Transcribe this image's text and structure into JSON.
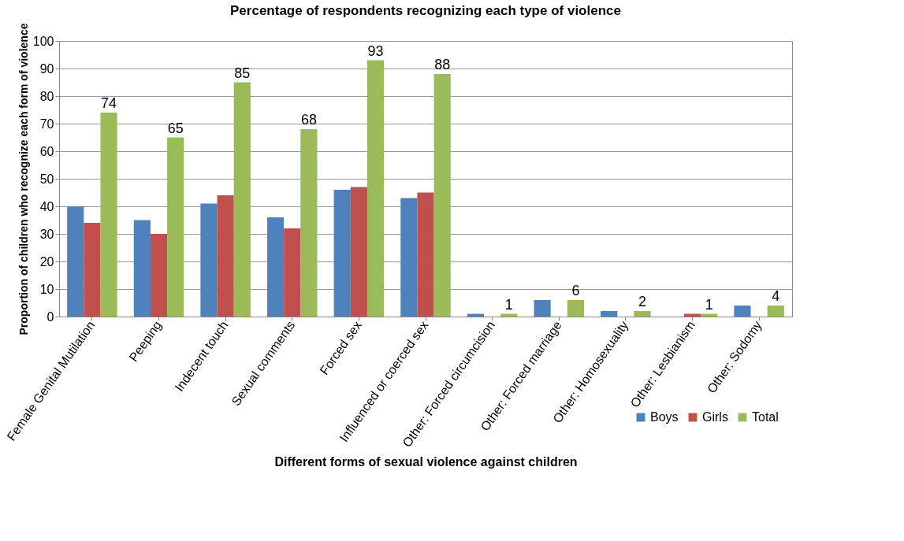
{
  "chart_data": {
    "type": "bar",
    "title": "Percentage of respondents recognizing each type of violence",
    "xlabel": "Different forms of sexual violence against children",
    "ylabel": "Proportion  of children who recognize each form of violence",
    "categories": [
      "Female Genital Mutilation",
      "Peeping",
      "Indecent touch",
      "Sexual comments",
      "Forced sex",
      "Influenced or coerced sex",
      "Other: Forced circumcision",
      "Other: Forced marriage",
      "Other: Homosexuality",
      "Other: Lesbianism",
      "Other: Sodomy"
    ],
    "series": [
      {
        "name": "Boys",
        "color": "#4f81bd",
        "values": [
          40,
          35,
          41,
          36,
          46,
          43,
          1,
          6,
          2,
          0,
          4
        ]
      },
      {
        "name": "Girls",
        "color": "#c0504d",
        "values": [
          34,
          30,
          44,
          32,
          47,
          45,
          0,
          0,
          0,
          1,
          0
        ]
      },
      {
        "name": "Total",
        "color": "#9bbb59",
        "values": [
          74,
          65,
          85,
          68,
          93,
          88,
          1,
          6,
          2,
          1,
          4
        ],
        "value_labels": [
          "74",
          "65",
          "85",
          "68",
          "93",
          "88",
          "1",
          "6",
          "2",
          "1",
          "4"
        ]
      }
    ],
    "ylim": [
      0,
      100
    ],
    "yticks": [
      0,
      10,
      20,
      30,
      40,
      50,
      60,
      70,
      80,
      90,
      100
    ],
    "grid": "y",
    "legend": "bottom right"
  }
}
